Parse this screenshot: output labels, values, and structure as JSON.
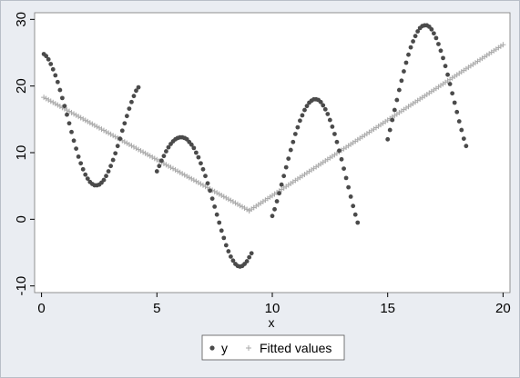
{
  "chart_data": {
    "type": "scatter",
    "title": "",
    "xlabel": "x",
    "ylabel": "",
    "xlim": [
      -0.3,
      20.3
    ],
    "ylim": [
      -11,
      31
    ],
    "x_ticks": [
      0,
      5,
      10,
      15,
      20
    ],
    "x_tick_labels": [
      "0",
      "5",
      "10",
      "15",
      "20"
    ],
    "y_ticks": [
      -10,
      0,
      10,
      20,
      30
    ],
    "y_tick_labels": [
      "-10",
      "0",
      "10",
      "20",
      "30"
    ],
    "grid": "horizontal-none",
    "legend_placement": "bottom-center",
    "colors": {
      "y": "#4a4a4a",
      "fitted": "#a9a9a9",
      "plot_bg": "#ffffff",
      "outer_bg": "#eaedf2"
    },
    "series": [
      {
        "name": "y",
        "marker": "circle",
        "segments": [
          {
            "x0": 0.1,
            "x1": 5.0,
            "form": "12+10*cos(1.05*(x-0.2))",
            "note": "values sampled below"
          }
        ],
        "points": [
          [
            0.1,
            24.8
          ],
          [
            0.2,
            24.5
          ],
          [
            0.3,
            24.0
          ],
          [
            0.4,
            23.3
          ],
          [
            0.5,
            22.5
          ],
          [
            0.6,
            21.6
          ],
          [
            0.7,
            20.6
          ],
          [
            0.8,
            19.4
          ],
          [
            0.9,
            18.2
          ],
          [
            1.0,
            17.0
          ],
          [
            1.1,
            15.7
          ],
          [
            1.2,
            14.4
          ],
          [
            1.3,
            13.1
          ],
          [
            1.4,
            11.8
          ],
          [
            1.5,
            10.6
          ],
          [
            1.6,
            9.4
          ],
          [
            1.7,
            8.4
          ],
          [
            1.8,
            7.5
          ],
          [
            1.9,
            6.7
          ],
          [
            2.0,
            6.1
          ],
          [
            2.1,
            5.6
          ],
          [
            2.2,
            5.3
          ],
          [
            2.3,
            5.1
          ],
          [
            2.4,
            5.1
          ],
          [
            2.5,
            5.2
          ],
          [
            2.6,
            5.5
          ],
          [
            2.7,
            5.9
          ],
          [
            2.8,
            6.5
          ],
          [
            2.9,
            7.2
          ],
          [
            3.0,
            8.0
          ],
          [
            3.1,
            8.9
          ],
          [
            3.2,
            9.9
          ],
          [
            3.3,
            11.0
          ],
          [
            3.4,
            12.1
          ],
          [
            3.5,
            13.3
          ],
          [
            3.6,
            14.4
          ],
          [
            3.7,
            15.5
          ],
          [
            3.8,
            16.6
          ],
          [
            3.9,
            17.6
          ],
          [
            4.0,
            18.5
          ],
          [
            4.1,
            19.3
          ],
          [
            4.2,
            19.8
          ],
          [
            5.0,
            7.2
          ],
          [
            5.1,
            8.0
          ],
          [
            5.2,
            8.8
          ],
          [
            5.3,
            9.5
          ],
          [
            5.4,
            10.2
          ],
          [
            5.5,
            10.8
          ],
          [
            5.6,
            11.3
          ],
          [
            5.7,
            11.7
          ],
          [
            5.8,
            12.0
          ],
          [
            5.9,
            12.2
          ],
          [
            6.0,
            12.3
          ],
          [
            6.1,
            12.3
          ],
          [
            6.2,
            12.2
          ],
          [
            6.3,
            12.0
          ],
          [
            6.4,
            11.6
          ],
          [
            6.5,
            11.2
          ],
          [
            6.6,
            10.7
          ],
          [
            6.7,
            10.0
          ],
          [
            6.8,
            9.3
          ],
          [
            6.9,
            8.4
          ],
          [
            7.0,
            7.5
          ],
          [
            7.1,
            6.5
          ],
          [
            7.2,
            5.4
          ],
          [
            7.3,
            4.3
          ],
          [
            7.4,
            3.1
          ],
          [
            7.5,
            1.9
          ],
          [
            7.6,
            0.7
          ],
          [
            7.7,
            -0.5
          ],
          [
            7.8,
            -1.7
          ],
          [
            7.9,
            -2.8
          ],
          [
            8.0,
            -3.9
          ],
          [
            8.1,
            -4.8
          ],
          [
            8.2,
            -5.6
          ],
          [
            8.3,
            -6.2
          ],
          [
            8.4,
            -6.7
          ],
          [
            8.5,
            -7.0
          ],
          [
            8.6,
            -7.1
          ],
          [
            8.7,
            -7.0
          ],
          [
            8.8,
            -6.7
          ],
          [
            8.9,
            -6.3
          ],
          [
            9.0,
            -5.7
          ],
          [
            9.1,
            -5.1
          ],
          [
            10.0,
            0.5
          ],
          [
            10.1,
            1.5
          ],
          [
            10.2,
            2.7
          ],
          [
            10.3,
            3.9
          ],
          [
            10.4,
            5.2
          ],
          [
            10.5,
            6.5
          ],
          [
            10.6,
            7.8
          ],
          [
            10.7,
            9.1
          ],
          [
            10.8,
            10.4
          ],
          [
            10.9,
            11.6
          ],
          [
            11.0,
            12.8
          ],
          [
            11.1,
            13.8
          ],
          [
            11.2,
            14.8
          ],
          [
            11.3,
            15.6
          ],
          [
            11.4,
            16.4
          ],
          [
            11.5,
            17.0
          ],
          [
            11.6,
            17.5
          ],
          [
            11.7,
            17.8
          ],
          [
            11.8,
            18.0
          ],
          [
            11.9,
            18.0
          ],
          [
            12.0,
            17.9
          ],
          [
            12.1,
            17.6
          ],
          [
            12.2,
            17.1
          ],
          [
            12.3,
            16.5
          ],
          [
            12.4,
            15.8
          ],
          [
            12.5,
            14.9
          ],
          [
            12.6,
            13.9
          ],
          [
            12.7,
            12.8
          ],
          [
            12.8,
            11.6
          ],
          [
            12.9,
            10.3
          ],
          [
            13.0,
            9.0
          ],
          [
            13.1,
            7.6
          ],
          [
            13.2,
            6.2
          ],
          [
            13.3,
            4.8
          ],
          [
            13.4,
            3.4
          ],
          [
            13.5,
            2.0
          ],
          [
            13.6,
            0.7
          ],
          [
            13.7,
            -0.5
          ],
          [
            15.0,
            12.0
          ],
          [
            15.1,
            13.4
          ],
          [
            15.2,
            14.9
          ],
          [
            15.3,
            16.4
          ],
          [
            15.4,
            17.9
          ],
          [
            15.5,
            19.4
          ],
          [
            15.6,
            20.8
          ],
          [
            15.7,
            22.2
          ],
          [
            15.8,
            23.5
          ],
          [
            15.9,
            24.7
          ],
          [
            16.0,
            25.8
          ],
          [
            16.1,
            26.7
          ],
          [
            16.2,
            27.5
          ],
          [
            16.3,
            28.2
          ],
          [
            16.4,
            28.7
          ],
          [
            16.5,
            29.0
          ],
          [
            16.6,
            29.1
          ],
          [
            16.7,
            29.1
          ],
          [
            16.8,
            28.9
          ],
          [
            16.9,
            28.5
          ],
          [
            17.0,
            27.9
          ],
          [
            17.1,
            27.2
          ],
          [
            17.2,
            26.3
          ],
          [
            17.3,
            25.3
          ],
          [
            17.4,
            24.2
          ],
          [
            17.5,
            23.0
          ],
          [
            17.6,
            21.7
          ],
          [
            17.7,
            20.3
          ],
          [
            17.8,
            18.9
          ],
          [
            17.9,
            17.5
          ],
          [
            18.0,
            16.1
          ],
          [
            18.1,
            14.7
          ],
          [
            18.2,
            13.4
          ],
          [
            18.3,
            12.1
          ],
          [
            18.4,
            11.0
          ]
        ]
      },
      {
        "name": "Fitted values",
        "marker": "plus",
        "points": [
          [
            0.1,
            18.3
          ],
          [
            9.0,
            1.3
          ],
          [
            20.0,
            26.2
          ]
        ]
      }
    ],
    "legend": {
      "entries": [
        "y",
        "Fitted values"
      ]
    }
  }
}
